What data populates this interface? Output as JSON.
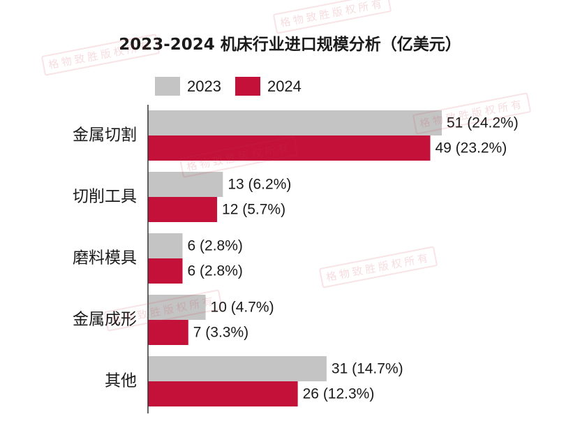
{
  "watermark": "格物致胜版权所有",
  "chart_data": {
    "type": "bar",
    "orientation": "horizontal",
    "title": "2023-2024 机床行业进口规模分析（亿美元）",
    "categories": [
      "金属切割",
      "切削工具",
      "磨料模具",
      "金属成形",
      "其他"
    ],
    "series": [
      {
        "name": "2023",
        "color": "#c4c4c4",
        "values": [
          51,
          13,
          6,
          10,
          31
        ],
        "labels": [
          "51 (24.2%)",
          "13 (6.2%)",
          "6 (2.8%)",
          "10 (4.7%)",
          "31 (14.7%)"
        ]
      },
      {
        "name": "2024",
        "color": "#c3113a",
        "values": [
          49,
          12,
          6,
          7,
          26
        ],
        "labels": [
          "49 (23.2%)",
          "12 (5.7%)",
          "6 (2.8%)",
          "7 (3.3%)",
          "26 (12.3%)"
        ]
      }
    ],
    "xlim": [
      0,
      51
    ],
    "legend_position": "top",
    "grid": false
  }
}
